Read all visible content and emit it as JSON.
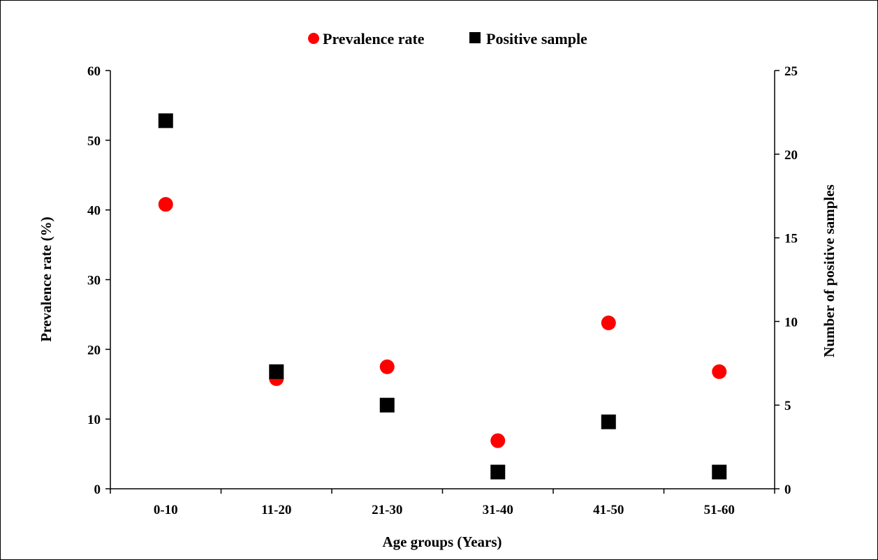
{
  "chart_data": {
    "type": "scatter",
    "title": "",
    "categories": [
      "0-10",
      "11-20",
      "21-30",
      "31-40",
      "41-50",
      "51-60"
    ],
    "xlabel": "Age groups (Years)",
    "ylabel": "Prevalence rate (%)",
    "y2label": "Number  of positive samples",
    "ylim": [
      0,
      60
    ],
    "y2lim": [
      0,
      25
    ],
    "yticks": [
      "0",
      "10",
      "20",
      "30",
      "40",
      "50",
      "60"
    ],
    "y2ticks": [
      "0",
      "5",
      "10",
      "15",
      "20",
      "25"
    ],
    "grid": false,
    "legend_position": "top",
    "series": [
      {
        "name": "Prevalence rate",
        "axis": "left",
        "marker": "circle",
        "color": "#ff0000",
        "values": [
          40.8,
          15.8,
          17.5,
          6.9,
          23.8,
          16.8
        ]
      },
      {
        "name": "Positive sample",
        "axis": "right",
        "marker": "square",
        "color": "#000000",
        "values": [
          22,
          7,
          5,
          1,
          4,
          1
        ]
      }
    ]
  }
}
